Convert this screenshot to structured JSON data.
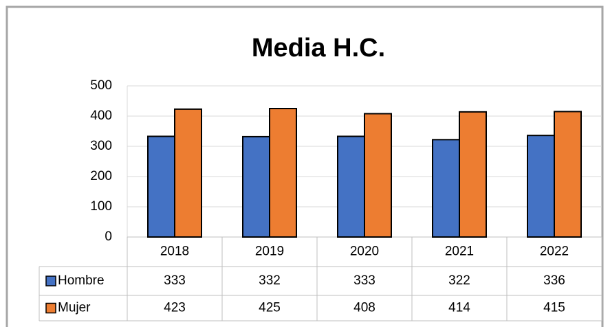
{
  "chart_data": {
    "type": "bar",
    "title": "Media H.C.",
    "categories": [
      "2018",
      "2019",
      "2020",
      "2021",
      "2022"
    ],
    "series": [
      {
        "name": "Hombre",
        "color": "#4472c4",
        "values": [
          333,
          332,
          333,
          322,
          336
        ]
      },
      {
        "name": "Mujer",
        "color": "#ed7d31",
        "values": [
          423,
          425,
          408,
          414,
          415
        ]
      }
    ],
    "ylim": [
      0,
      500
    ],
    "yticks": [
      0,
      100,
      200,
      300,
      400,
      500
    ],
    "grid": true
  }
}
